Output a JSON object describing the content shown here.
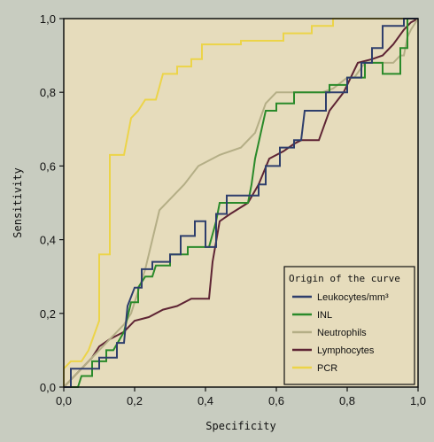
{
  "chart_data": {
    "type": "line",
    "xlabel": "Specificity",
    "ylabel": "Sensitivity",
    "xlim": [
      0,
      1
    ],
    "ylim": [
      0,
      1
    ],
    "x_ticks": [
      "0,0",
      "0,2",
      "0,4",
      "0,6",
      "0,8",
      "1,0"
    ],
    "y_ticks": [
      "0,0",
      "0,2",
      "0,4",
      "0,6",
      "0,8",
      "1,0"
    ],
    "grid": false,
    "legend_title": "Origin of the curve",
    "legend_position": "bottom-right",
    "background_color": "#e6dcbc",
    "series": [
      {
        "name": "Leukocytes/mm³",
        "color": "#2e3e6c",
        "points": [
          [
            0,
            0
          ],
          [
            0.02,
            0
          ],
          [
            0.02,
            0.05
          ],
          [
            0.1,
            0.05
          ],
          [
            0.1,
            0.08
          ],
          [
            0.15,
            0.08
          ],
          [
            0.15,
            0.12
          ],
          [
            0.17,
            0.12
          ],
          [
            0.18,
            0.22
          ],
          [
            0.2,
            0.27
          ],
          [
            0.22,
            0.27
          ],
          [
            0.22,
            0.32
          ],
          [
            0.25,
            0.32
          ],
          [
            0.25,
            0.34
          ],
          [
            0.3,
            0.34
          ],
          [
            0.3,
            0.36
          ],
          [
            0.33,
            0.36
          ],
          [
            0.33,
            0.41
          ],
          [
            0.37,
            0.41
          ],
          [
            0.37,
            0.45
          ],
          [
            0.4,
            0.45
          ],
          [
            0.4,
            0.38
          ],
          [
            0.43,
            0.38
          ],
          [
            0.43,
            0.47
          ],
          [
            0.46,
            0.47
          ],
          [
            0.46,
            0.52
          ],
          [
            0.55,
            0.52
          ],
          [
            0.55,
            0.55
          ],
          [
            0.57,
            0.55
          ],
          [
            0.57,
            0.6
          ],
          [
            0.61,
            0.6
          ],
          [
            0.61,
            0.65
          ],
          [
            0.65,
            0.65
          ],
          [
            0.65,
            0.67
          ],
          [
            0.67,
            0.67
          ],
          [
            0.68,
            0.75
          ],
          [
            0.74,
            0.75
          ],
          [
            0.74,
            0.8
          ],
          [
            0.8,
            0.8
          ],
          [
            0.8,
            0.84
          ],
          [
            0.84,
            0.84
          ],
          [
            0.84,
            0.88
          ],
          [
            0.87,
            0.88
          ],
          [
            0.87,
            0.92
          ],
          [
            0.9,
            0.92
          ],
          [
            0.9,
            0.98
          ],
          [
            0.96,
            0.98
          ],
          [
            0.96,
            1.0
          ],
          [
            1.0,
            1.0
          ]
        ]
      },
      {
        "name": "INL",
        "color": "#2a8a2a",
        "points": [
          [
            0,
            0
          ],
          [
            0.04,
            0
          ],
          [
            0.05,
            0.03
          ],
          [
            0.08,
            0.03
          ],
          [
            0.08,
            0.07
          ],
          [
            0.12,
            0.07
          ],
          [
            0.12,
            0.1
          ],
          [
            0.14,
            0.1
          ],
          [
            0.17,
            0.15
          ],
          [
            0.19,
            0.23
          ],
          [
            0.21,
            0.23
          ],
          [
            0.21,
            0.27
          ],
          [
            0.23,
            0.3
          ],
          [
            0.25,
            0.3
          ],
          [
            0.26,
            0.33
          ],
          [
            0.3,
            0.33
          ],
          [
            0.3,
            0.36
          ],
          [
            0.35,
            0.36
          ],
          [
            0.35,
            0.38
          ],
          [
            0.41,
            0.38
          ],
          [
            0.43,
            0.45
          ],
          [
            0.44,
            0.5
          ],
          [
            0.52,
            0.5
          ],
          [
            0.53,
            0.55
          ],
          [
            0.54,
            0.62
          ],
          [
            0.57,
            0.75
          ],
          [
            0.6,
            0.75
          ],
          [
            0.6,
            0.77
          ],
          [
            0.65,
            0.77
          ],
          [
            0.65,
            0.8
          ],
          [
            0.75,
            0.8
          ],
          [
            0.75,
            0.82
          ],
          [
            0.8,
            0.82
          ],
          [
            0.8,
            0.84
          ],
          [
            0.85,
            0.84
          ],
          [
            0.85,
            0.88
          ],
          [
            0.9,
            0.88
          ],
          [
            0.9,
            0.85
          ],
          [
            0.95,
            0.85
          ],
          [
            0.95,
            0.92
          ],
          [
            0.97,
            0.92
          ],
          [
            0.97,
            1.0
          ],
          [
            1.0,
            1.0
          ]
        ]
      },
      {
        "name": "Neutrophils",
        "color": "#b4ae86",
        "points": [
          [
            0,
            0
          ],
          [
            0.02,
            0.02
          ],
          [
            0.05,
            0.05
          ],
          [
            0.08,
            0.08
          ],
          [
            0.1,
            0.1
          ],
          [
            0.13,
            0.13
          ],
          [
            0.17,
            0.17
          ],
          [
            0.19,
            0.2
          ],
          [
            0.21,
            0.26
          ],
          [
            0.23,
            0.32
          ],
          [
            0.25,
            0.4
          ],
          [
            0.27,
            0.48
          ],
          [
            0.3,
            0.51
          ],
          [
            0.34,
            0.55
          ],
          [
            0.38,
            0.6
          ],
          [
            0.4,
            0.61
          ],
          [
            0.44,
            0.63
          ],
          [
            0.5,
            0.65
          ],
          [
            0.54,
            0.69
          ],
          [
            0.57,
            0.77
          ],
          [
            0.6,
            0.8
          ],
          [
            0.7,
            0.8
          ],
          [
            0.73,
            0.8
          ],
          [
            0.76,
            0.81
          ],
          [
            0.8,
            0.84
          ],
          [
            0.82,
            0.84
          ],
          [
            0.85,
            0.88
          ],
          [
            0.9,
            0.88
          ],
          [
            0.93,
            0.88
          ],
          [
            0.95,
            0.9
          ],
          [
            0.96,
            0.9
          ],
          [
            0.97,
            0.95
          ],
          [
            0.98,
            0.97
          ],
          [
            1.0,
            1.0
          ]
        ]
      },
      {
        "name": "Lymphocytes",
        "color": "#5e2434",
        "points": [
          [
            0,
            0
          ],
          [
            0.02,
            0.02
          ],
          [
            0.05,
            0.05
          ],
          [
            0.08,
            0.08
          ],
          [
            0.1,
            0.11
          ],
          [
            0.13,
            0.13
          ],
          [
            0.17,
            0.15
          ],
          [
            0.2,
            0.18
          ],
          [
            0.24,
            0.19
          ],
          [
            0.28,
            0.21
          ],
          [
            0.32,
            0.22
          ],
          [
            0.36,
            0.24
          ],
          [
            0.41,
            0.24
          ],
          [
            0.42,
            0.34
          ],
          [
            0.44,
            0.45
          ],
          [
            0.47,
            0.47
          ],
          [
            0.52,
            0.5
          ],
          [
            0.55,
            0.55
          ],
          [
            0.58,
            0.62
          ],
          [
            0.62,
            0.64
          ],
          [
            0.65,
            0.66
          ],
          [
            0.67,
            0.67
          ],
          [
            0.72,
            0.67
          ],
          [
            0.75,
            0.75
          ],
          [
            0.79,
            0.8
          ],
          [
            0.83,
            0.88
          ],
          [
            0.87,
            0.89
          ],
          [
            0.9,
            0.9
          ],
          [
            0.93,
            0.93
          ],
          [
            0.96,
            0.97
          ],
          [
            0.98,
            0.99
          ],
          [
            1.0,
            1.0
          ]
        ]
      },
      {
        "name": "PCR",
        "color": "#ecd448",
        "points": [
          [
            0,
            0
          ],
          [
            0,
            0.05
          ],
          [
            0.02,
            0.07
          ],
          [
            0.05,
            0.07
          ],
          [
            0.07,
            0.1
          ],
          [
            0.1,
            0.18
          ],
          [
            0.1,
            0.36
          ],
          [
            0.13,
            0.36
          ],
          [
            0.13,
            0.63
          ],
          [
            0.17,
            0.63
          ],
          [
            0.19,
            0.73
          ],
          [
            0.21,
            0.75
          ],
          [
            0.23,
            0.78
          ],
          [
            0.26,
            0.78
          ],
          [
            0.28,
            0.85
          ],
          [
            0.32,
            0.85
          ],
          [
            0.32,
            0.87
          ],
          [
            0.36,
            0.87
          ],
          [
            0.36,
            0.89
          ],
          [
            0.39,
            0.89
          ],
          [
            0.39,
            0.93
          ],
          [
            0.5,
            0.93
          ],
          [
            0.5,
            0.94
          ],
          [
            0.62,
            0.94
          ],
          [
            0.62,
            0.96
          ],
          [
            0.7,
            0.96
          ],
          [
            0.7,
            0.98
          ],
          [
            0.76,
            0.98
          ],
          [
            0.76,
            1.0
          ],
          [
            1.0,
            1.0
          ]
        ]
      }
    ]
  }
}
